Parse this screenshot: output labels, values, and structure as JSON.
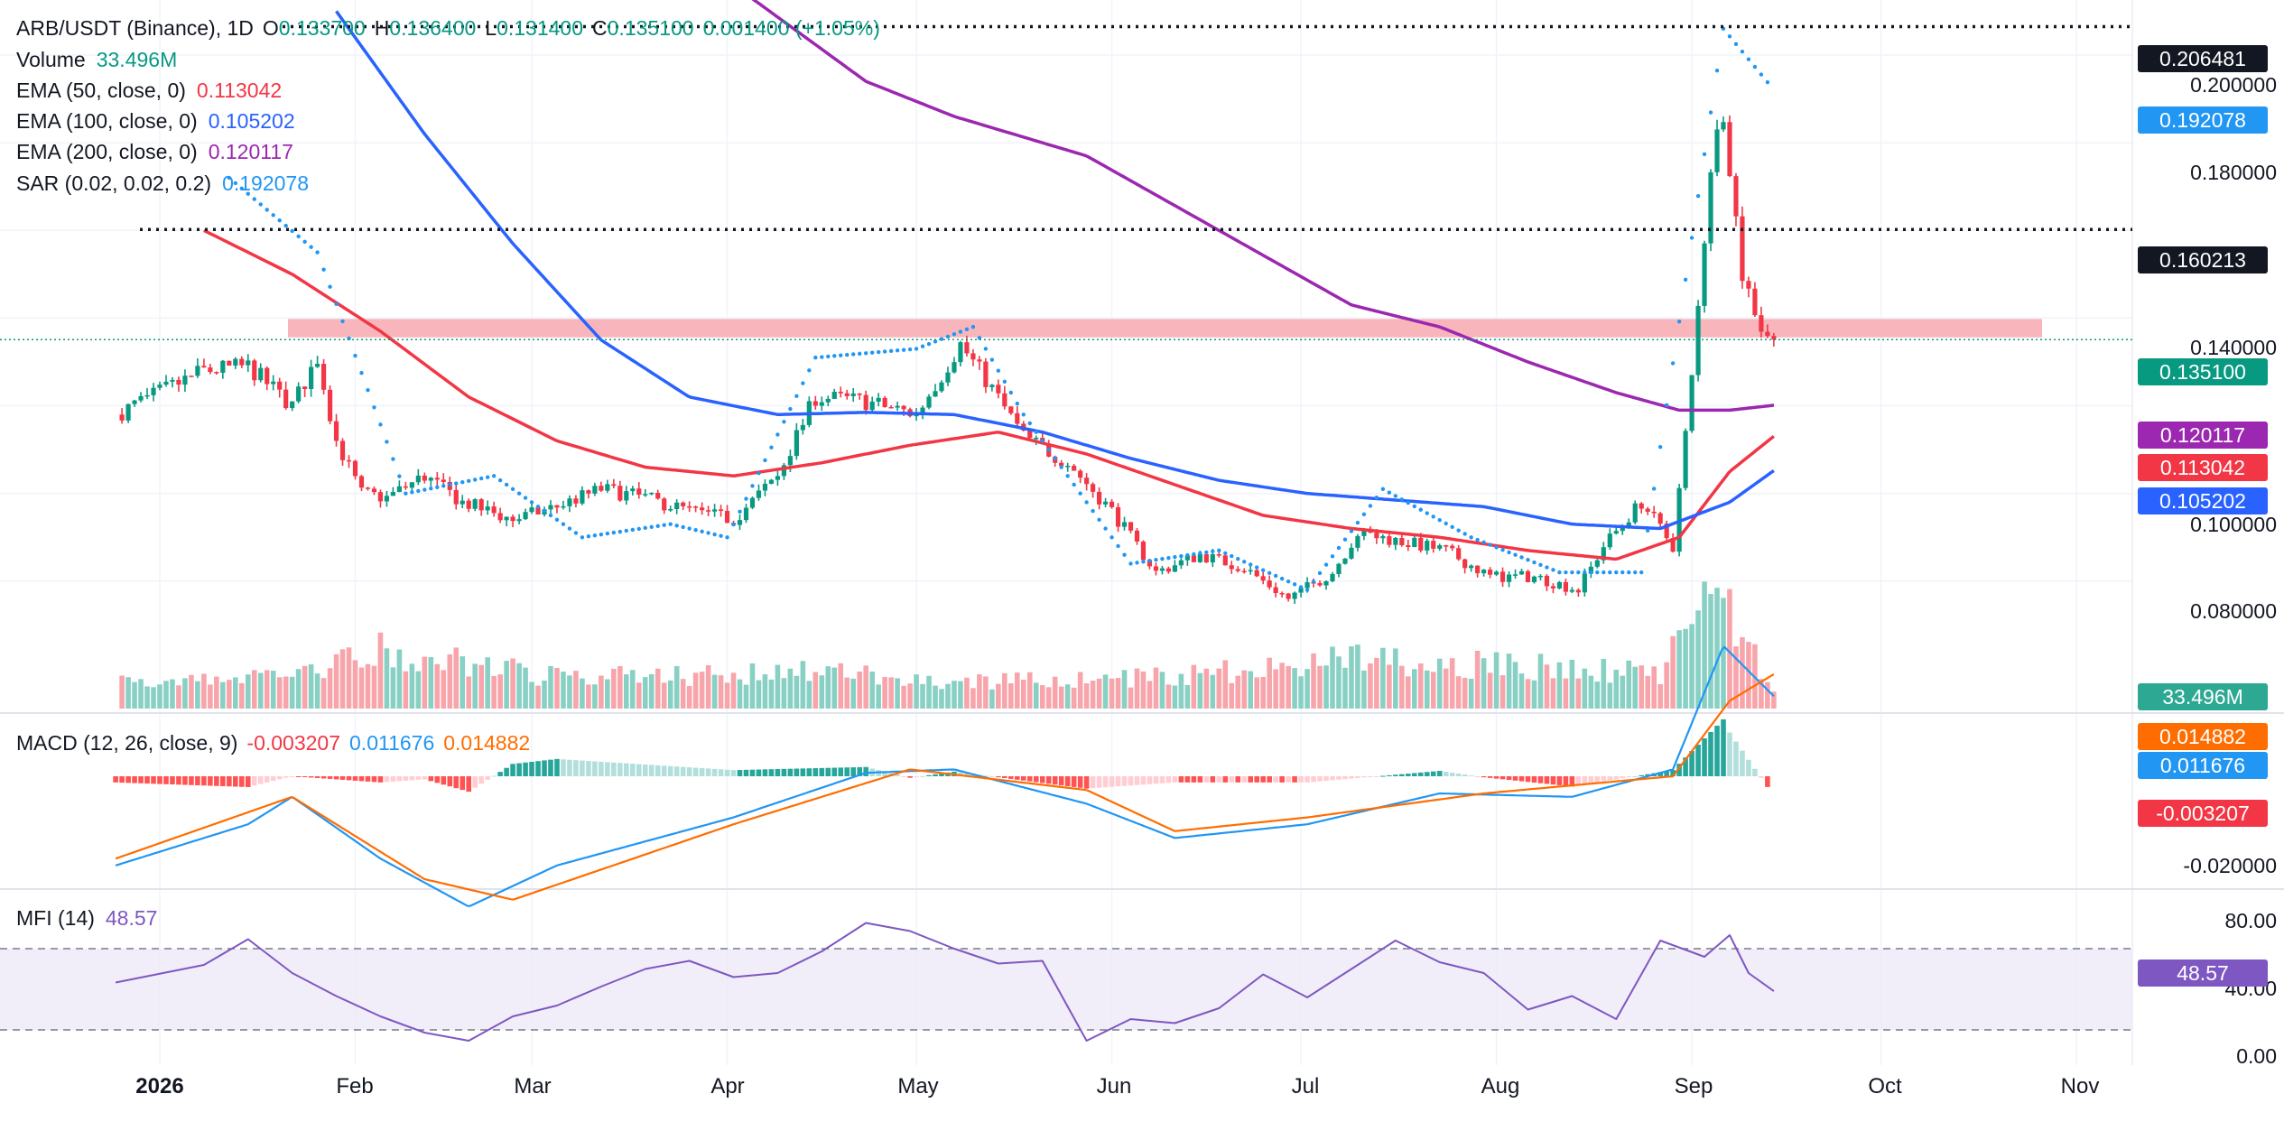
{
  "header": {
    "symbol": "ARB/USDT (Binance), 1D",
    "ohlc": {
      "o_label": "O",
      "o": "0.133700",
      "h_label": "H",
      "h": "0.136400",
      "l_label": "L",
      "l": "0.131400",
      "c_label": "C",
      "c": "0.135100",
      "change": "0.001400 (+1.05%)"
    }
  },
  "legend": {
    "volume": {
      "label": "Volume",
      "value": "33.496M"
    },
    "ema50": {
      "label": "EMA (50, close, 0)",
      "value": "0.113042"
    },
    "ema100": {
      "label": "EMA (100, close, 0)",
      "value": "0.105202"
    },
    "ema200": {
      "label": "EMA (200, close, 0)",
      "value": "0.120117"
    },
    "sar": {
      "label": "SAR (0.02, 0.02, 0.2)",
      "value": "0.192078"
    },
    "macd": {
      "label": "MACD (12, 26, close, 9)",
      "hist": "-0.003207",
      "macd": "0.011676",
      "signal": "0.014882"
    },
    "mfi": {
      "label": "MFI (14)",
      "value": "48.57"
    }
  },
  "price_axis": [
    "0.200000",
    "0.180000",
    "0.140000",
    "0.100000",
    "0.080000"
  ],
  "macd_axis": [
    "-0.020000"
  ],
  "mfi_axis": [
    "80.00",
    "40.00",
    "0.00"
  ],
  "badges": {
    "level_high": "0.206481",
    "sar": "0.192078",
    "level_mid": "0.160213",
    "last": "0.135100",
    "ema200": "0.120117",
    "ema50": "0.113042",
    "ema100": "0.105202",
    "volume": "33.496M",
    "signal": "0.014882",
    "macd": "0.011676",
    "hist": "-0.003207",
    "mfi": "48.57"
  },
  "time_axis": [
    "2026",
    "Feb",
    "Mar",
    "Apr",
    "May",
    "Jun",
    "Jul",
    "Aug",
    "Sep",
    "Oct",
    "Nov"
  ],
  "colors": {
    "up": "#089981",
    "down": "#f23645",
    "ema50": "#f23645",
    "ema100": "#2962ff",
    "ema200": "#9c27b0",
    "sar": "#2196f3",
    "zone": "#f7a9b0",
    "macd": "#2196f3",
    "signal": "#ff6d00",
    "mfi": "#7e57c2"
  },
  "chart_data": [
    {
      "type": "line",
      "title": "ARB/USDT (Binance), 1D",
      "x_labels": [
        "2026",
        "Feb",
        "Mar",
        "Apr",
        "May",
        "Jun",
        "Jul",
        "Aug",
        "Sep",
        "Oct",
        "Nov"
      ],
      "ylim": [
        0.063,
        0.218
      ],
      "horizontal_levels": [
        0.206481,
        0.160213
      ],
      "resistance_zone": [
        0.1356,
        0.1398
      ],
      "last_price": 0.1351,
      "series": [
        {
          "name": "Close",
          "values": [
            [
              "2025-12-25",
              0.118
            ],
            [
              "2026-01-01",
              0.123
            ],
            [
              "2026-01-08",
              0.128
            ],
            [
              "2026-01-15",
              0.129
            ],
            [
              "2026-01-22",
              0.12
            ],
            [
              "2026-01-26",
              0.131
            ],
            [
              "2026-01-29",
              0.112
            ],
            [
              "2026-02-02",
              0.1
            ],
            [
              "2026-02-06",
              0.099
            ],
            [
              "2026-02-12",
              0.104
            ],
            [
              "2026-02-18",
              0.098
            ],
            [
              "2026-02-26",
              0.094
            ],
            [
              "2026-03-05",
              0.097
            ],
            [
              "2026-03-12",
              0.101
            ],
            [
              "2026-03-19",
              0.099
            ],
            [
              "2026-03-26",
              0.096
            ],
            [
              "2026-04-02",
              0.094
            ],
            [
              "2026-04-09",
              0.104
            ],
            [
              "2026-04-15",
              0.122
            ],
            [
              "2026-04-23",
              0.121
            ],
            [
              "2026-05-01",
              0.118
            ],
            [
              "2026-05-08",
              0.134
            ],
            [
              "2026-05-12",
              0.126
            ],
            [
              "2026-05-18",
              0.113
            ],
            [
              "2026-05-25",
              0.107
            ],
            [
              "2026-06-01",
              0.096
            ],
            [
              "2026-06-08",
              0.082
            ],
            [
              "2026-06-15",
              0.086
            ],
            [
              "2026-06-22",
              0.083
            ],
            [
              "2026-06-29",
              0.076
            ],
            [
              "2026-07-06",
              0.082
            ],
            [
              "2026-07-10",
              0.091
            ],
            [
              "2026-07-17",
              0.089
            ],
            [
              "2026-07-24",
              0.087
            ],
            [
              "2026-07-31",
              0.081
            ],
            [
              "2026-08-07",
              0.081
            ],
            [
              "2026-08-14",
              0.078
            ],
            [
              "2026-08-18",
              0.088
            ],
            [
              "2026-08-24",
              0.098
            ],
            [
              "2026-08-29",
              0.088
            ],
            [
              "2026-09-01",
              0.126
            ],
            [
              "2026-09-04",
              0.175
            ],
            [
              "2026-09-06",
              0.188
            ],
            [
              "2026-09-09",
              0.15
            ],
            [
              "2026-09-12",
              0.138
            ],
            [
              "2026-09-14",
              0.1351
            ]
          ]
        },
        {
          "name": "EMA (50, close, 0)",
          "values": [
            [
              "2026-01-08",
              0.16
            ],
            [
              "2026-01-22",
              0.15
            ],
            [
              "2026-02-05",
              0.137
            ],
            [
              "2026-02-19",
              0.122
            ],
            [
              "2026-03-05",
              0.112
            ],
            [
              "2026-03-19",
              0.106
            ],
            [
              "2026-04-02",
              0.104
            ],
            [
              "2026-04-16",
              0.107
            ],
            [
              "2026-04-30",
              0.111
            ],
            [
              "2026-05-14",
              0.114
            ],
            [
              "2026-05-28",
              0.109
            ],
            [
              "2026-06-11",
              0.102
            ],
            [
              "2026-06-25",
              0.095
            ],
            [
              "2026-07-09",
              0.092
            ],
            [
              "2026-07-23",
              0.09
            ],
            [
              "2026-08-06",
              0.087
            ],
            [
              "2026-08-20",
              0.085
            ],
            [
              "2026-08-30",
              0.09
            ],
            [
              "2026-09-07",
              0.105
            ],
            [
              "2026-09-14",
              0.113042
            ]
          ]
        },
        {
          "name": "EMA (100, close, 0)",
          "values": [
            [
              "2026-01-29",
              0.21
            ],
            [
              "2026-02-12",
              0.182
            ],
            [
              "2026-02-26",
              0.157
            ],
            [
              "2026-03-12",
              0.135
            ],
            [
              "2026-03-26",
              0.122
            ],
            [
              "2026-04-09",
              0.118
            ],
            [
              "2026-04-23",
              0.1185
            ],
            [
              "2026-05-07",
              0.118
            ],
            [
              "2026-05-21",
              0.114
            ],
            [
              "2026-06-04",
              0.108
            ],
            [
              "2026-06-18",
              0.103
            ],
            [
              "2026-07-02",
              0.1
            ],
            [
              "2026-07-16",
              0.0985
            ],
            [
              "2026-07-30",
              0.097
            ],
            [
              "2026-08-13",
              0.093
            ],
            [
              "2026-08-27",
              0.092
            ],
            [
              "2026-09-07",
              0.098
            ],
            [
              "2026-09-14",
              0.105202
            ]
          ]
        },
        {
          "name": "EMA (200, close, 0)",
          "values": [
            [
              "2026-04-02",
              0.216
            ],
            [
              "2026-04-23",
              0.194
            ],
            [
              "2026-05-07",
              0.186
            ],
            [
              "2026-05-28",
              0.177
            ],
            [
              "2026-06-18",
              0.16
            ],
            [
              "2026-07-09",
              0.143
            ],
            [
              "2026-07-23",
              0.138
            ],
            [
              "2026-08-06",
              0.13
            ],
            [
              "2026-08-20",
              0.123
            ],
            [
              "2026-08-30",
              0.119
            ],
            [
              "2026-09-07",
              0.119
            ],
            [
              "2026-09-14",
              0.120117
            ]
          ]
        },
        {
          "name": "SAR (0.02, 0.02, 0.2)",
          "values": [
            [
              "2026-01-12",
              0.172
            ],
            [
              "2026-01-26",
              0.155
            ],
            [
              "2026-02-09",
              0.1
            ],
            [
              "2026-02-23",
              0.104
            ],
            [
              "2026-03-09",
              0.09
            ],
            [
              "2026-03-23",
              0.093
            ],
            [
              "2026-04-01",
              0.09
            ],
            [
              "2026-04-15",
              0.131
            ],
            [
              "2026-05-01",
              0.133
            ],
            [
              "2026-05-10",
              0.138
            ],
            [
              "2026-05-18",
              0.118
            ],
            [
              "2026-06-04",
              0.084
            ],
            [
              "2026-06-18",
              0.087
            ],
            [
              "2026-07-02",
              0.078
            ],
            [
              "2026-07-14",
              0.101
            ],
            [
              "2026-07-28",
              0.09
            ],
            [
              "2026-08-11",
              0.082
            ],
            [
              "2026-08-24",
              0.082
            ],
            [
              "2026-09-06",
              0.206
            ],
            [
              "2026-09-14",
              0.192078
            ]
          ]
        },
        {
          "name": "Volume",
          "unit": "M",
          "values": [
            [
              "2026-01-22",
              60
            ],
            [
              "2026-02-05",
              110
            ],
            [
              "2026-03-05",
              60
            ],
            [
              "2026-04-16",
              70
            ],
            [
              "2026-05-07",
              50
            ],
            [
              "2026-06-11",
              60
            ],
            [
              "2026-07-10",
              95
            ],
            [
              "2026-08-27",
              70
            ],
            [
              "2026-09-04",
              235
            ],
            [
              "2026-09-14",
              33.496
            ]
          ]
        }
      ]
    },
    {
      "type": "line",
      "title": "MACD (12, 26, close, 9)",
      "ylim": [
        -0.024,
        0.02
      ],
      "series": [
        {
          "name": "MACD",
          "values": [
            [
              "2025-12-25",
              -0.013
            ],
            [
              "2026-01-15",
              -0.007
            ],
            [
              "2026-01-22",
              -0.003
            ],
            [
              "2026-02-05",
              -0.012
            ],
            [
              "2026-02-19",
              -0.019
            ],
            [
              "2026-03-05",
              -0.013
            ],
            [
              "2026-04-02",
              -0.006
            ],
            [
              "2026-04-23",
              0.0005
            ],
            [
              "2026-05-07",
              0.001
            ],
            [
              "2026-05-28",
              -0.004
            ],
            [
              "2026-06-11",
              -0.009
            ],
            [
              "2026-07-02",
              -0.007
            ],
            [
              "2026-07-23",
              -0.0025
            ],
            [
              "2026-08-13",
              -0.003
            ],
            [
              "2026-08-29",
              0.001
            ],
            [
              "2026-09-06",
              0.019
            ],
            [
              "2026-09-14",
              0.011676
            ]
          ]
        },
        {
          "name": "Signal",
          "values": [
            [
              "2025-12-25",
              -0.012
            ],
            [
              "2026-01-22",
              -0.003
            ],
            [
              "2026-02-12",
              -0.015
            ],
            [
              "2026-02-26",
              -0.018
            ],
            [
              "2026-04-02",
              -0.007
            ],
            [
              "2026-04-30",
              0.001
            ],
            [
              "2026-05-28",
              -0.002
            ],
            [
              "2026-06-11",
              -0.008
            ],
            [
              "2026-07-02",
              -0.006
            ],
            [
              "2026-07-30",
              -0.0025
            ],
            [
              "2026-08-29",
              0.0
            ],
            [
              "2026-09-07",
              0.011
            ],
            [
              "2026-09-14",
              0.014882
            ]
          ]
        },
        {
          "name": "Histogram",
          "values": [
            [
              "2026-01-08",
              0.0015
            ],
            [
              "2026-02-05",
              -0.003
            ],
            [
              "2026-04-16",
              0.001
            ],
            [
              "2026-06-04",
              -0.001
            ],
            [
              "2026-09-04",
              0.005
            ],
            [
              "2026-09-14",
              -0.003207
            ]
          ]
        }
      ]
    },
    {
      "type": "line",
      "title": "MFI (14)",
      "ylim": [
        0,
        100
      ],
      "bands": [
        20,
        80
      ],
      "series": [
        {
          "name": "MFI",
          "values": [
            [
              "2025-12-25",
              55
            ],
            [
              "2026-01-08",
              68
            ],
            [
              "2026-01-15",
              87
            ],
            [
              "2026-01-22",
              62
            ],
            [
              "2026-01-29",
              45
            ],
            [
              "2026-02-05",
              30
            ],
            [
              "2026-02-12",
              18
            ],
            [
              "2026-02-19",
              12
            ],
            [
              "2026-02-26",
              30
            ],
            [
              "2026-03-05",
              38
            ],
            [
              "2026-03-12",
              52
            ],
            [
              "2026-03-19",
              65
            ],
            [
              "2026-03-26",
              71
            ],
            [
              "2026-04-02",
              59
            ],
            [
              "2026-04-09",
              62
            ],
            [
              "2026-04-16",
              78
            ],
            [
              "2026-04-23",
              99
            ],
            [
              "2026-04-30",
              93
            ],
            [
              "2026-05-07",
              80
            ],
            [
              "2026-05-14",
              69
            ],
            [
              "2026-05-21",
              71
            ],
            [
              "2026-05-28",
              12
            ],
            [
              "2026-06-04",
              28
            ],
            [
              "2026-06-11",
              25
            ],
            [
              "2026-06-18",
              36
            ],
            [
              "2026-06-25",
              61
            ],
            [
              "2026-07-02",
              44
            ],
            [
              "2026-07-09",
              65
            ],
            [
              "2026-07-16",
              86
            ],
            [
              "2026-07-23",
              70
            ],
            [
              "2026-07-30",
              62
            ],
            [
              "2026-08-06",
              35
            ],
            [
              "2026-08-13",
              45
            ],
            [
              "2026-08-20",
              28
            ],
            [
              "2026-08-27",
              86
            ],
            [
              "2026-09-03",
              74
            ],
            [
              "2026-09-07",
              90
            ],
            [
              "2026-09-10",
              62
            ],
            [
              "2026-09-14",
              48.57
            ]
          ]
        }
      ]
    }
  ]
}
